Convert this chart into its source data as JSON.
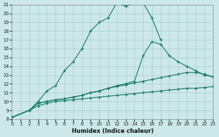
{
  "bg_color": "#cce8e8",
  "grid_color": "#aacccc",
  "line_color": "#1a7a6a",
  "xlabel": "Humidex (Indice chaleur)",
  "xlim": [
    0,
    23
  ],
  "ylim": [
    8,
    21
  ],
  "xticks": [
    0,
    1,
    2,
    3,
    4,
    5,
    6,
    7,
    8,
    9,
    10,
    11,
    12,
    13,
    14,
    15,
    16,
    17,
    18,
    19,
    20,
    21,
    22,
    23
  ],
  "yticks": [
    8,
    9,
    10,
    11,
    12,
    13,
    14,
    15,
    16,
    17,
    18,
    19,
    20,
    21
  ],
  "series_data": {
    "curve1_x": [
      0,
      2,
      3,
      4,
      5,
      6,
      7,
      8,
      9,
      10,
      11,
      12,
      13,
      14,
      15,
      16,
      17
    ],
    "curve1_y": [
      8.2,
      9.0,
      10.0,
      11.2,
      11.8,
      13.5,
      14.5,
      16.0,
      18.0,
      19.0,
      19.5,
      21.2,
      20.8,
      21.2,
      21.2,
      19.5,
      17.0
    ],
    "curve2_x": [
      0,
      2,
      3,
      4,
      5,
      6,
      7,
      8,
      9,
      10,
      11,
      12,
      13,
      14,
      15,
      16,
      17,
      18,
      19,
      20,
      21,
      22,
      23
    ],
    "curve2_y": [
      8.2,
      9.0,
      9.8,
      10.0,
      10.2,
      10.3,
      10.5,
      10.7,
      11.0,
      11.2,
      11.5,
      11.8,
      12.0,
      12.3,
      15.2,
      16.8,
      16.5,
      15.2,
      14.5,
      14.0,
      13.5,
      13.0,
      12.8
    ],
    "curve3_x": [
      0,
      2,
      3,
      4,
      5,
      6,
      7,
      8,
      9,
      10,
      11,
      12,
      13,
      14,
      15,
      16,
      17,
      18,
      19,
      20,
      21,
      22,
      23
    ],
    "curve3_y": [
      8.2,
      9.0,
      9.8,
      10.0,
      10.2,
      10.3,
      10.5,
      10.7,
      11.0,
      11.2,
      11.5,
      11.7,
      11.9,
      12.1,
      12.3,
      12.5,
      12.7,
      12.9,
      13.1,
      13.3,
      13.3,
      13.1,
      12.8
    ],
    "curve4_x": [
      0,
      2,
      3,
      4,
      5,
      6,
      7,
      8,
      9,
      10,
      11,
      12,
      13,
      14,
      15,
      16,
      17,
      18,
      19,
      20,
      21,
      22,
      23
    ],
    "curve4_y": [
      8.2,
      9.0,
      9.5,
      9.8,
      10.0,
      10.1,
      10.2,
      10.3,
      10.4,
      10.5,
      10.6,
      10.7,
      10.8,
      10.9,
      11.0,
      11.1,
      11.2,
      11.3,
      11.4,
      11.5,
      11.5,
      11.6,
      11.7
    ]
  }
}
